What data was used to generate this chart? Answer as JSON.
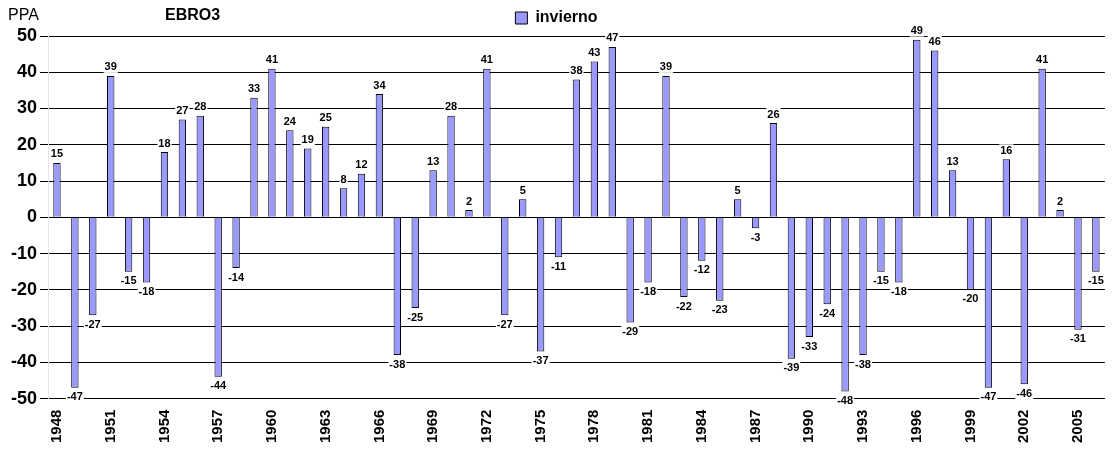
{
  "chart_data": {
    "type": "bar",
    "title": "EBRO3",
    "ylabel": "PPA",
    "categories": [
      "1948",
      null,
      null,
      "1951",
      null,
      null,
      "1954",
      null,
      null,
      "1957",
      null,
      null,
      "1960",
      null,
      null,
      "1963",
      null,
      null,
      "1966",
      null,
      null,
      "1969",
      null,
      null,
      "1972",
      null,
      null,
      "1975",
      null,
      null,
      "1978",
      null,
      null,
      "1981",
      null,
      null,
      "1984",
      null,
      null,
      "1987",
      null,
      null,
      "1990",
      null,
      null,
      "1993",
      null,
      null,
      "1996",
      null,
      null,
      "1999",
      null,
      null,
      "2002",
      null,
      null,
      "2005",
      null
    ],
    "series": [
      {
        "name": "invierno",
        "color": "#9999ff",
        "values": [
          15,
          -47,
          -27,
          39,
          -15,
          -18,
          18,
          27,
          28,
          -44,
          -14,
          33,
          41,
          24,
          19,
          25,
          8,
          12,
          34,
          -38,
          -25,
          13,
          28,
          2,
          41,
          -27,
          5,
          -37,
          -11,
          38,
          43,
          47,
          -29,
          -18,
          39,
          -22,
          -12,
          -23,
          5,
          -3,
          26,
          -39,
          -33,
          -24,
          -48,
          -38,
          -15,
          -18,
          49,
          46,
          13,
          -20,
          -47,
          16,
          -46,
          41,
          2,
          -31,
          -15
        ]
      }
    ],
    "ylim": [
      -50,
      50
    ],
    "yticks": [
      -50,
      -40,
      -30,
      -20,
      -10,
      0,
      10,
      20,
      30,
      40,
      50
    ],
    "grid": "y",
    "legend": "top",
    "data_labels": true
  }
}
